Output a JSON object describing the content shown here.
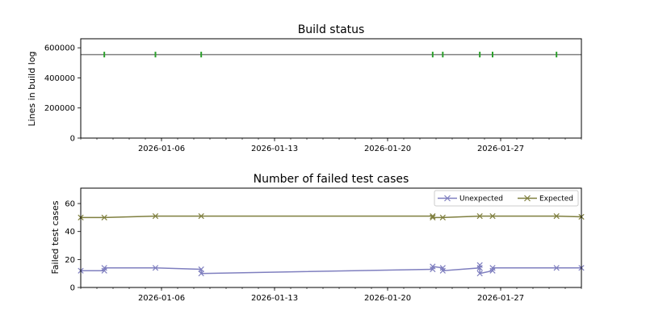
{
  "chart_data": [
    {
      "type": "line",
      "title": "Build status",
      "xlabel": "",
      "ylabel": "Lines in build log",
      "x_axis": {
        "type": "date",
        "range": [
          "2026-01-01T00:00",
          "2026-02-01T00:00"
        ],
        "tick_labels": [
          "2026-01-06",
          "2026-01-13",
          "2026-01-20",
          "2026-01-27"
        ],
        "minor_ticks": "daily"
      },
      "y_axis": {
        "range": [
          0,
          660000
        ],
        "tick_labels": [
          "0",
          "200000",
          "400000",
          "600000"
        ]
      },
      "grid": false,
      "legend": null,
      "baseline": {
        "value": 555000,
        "color": "#808080",
        "x_range": [
          "2026-01-01T00:00",
          "2026-02-01T00:00"
        ]
      },
      "series": [
        {
          "marker": "|",
          "color": "#2ca02c",
          "points": [
            {
              "x": "2026-01-02T11:00",
              "y": 555000
            },
            {
              "x": "2026-01-05T15:00",
              "y": 555000
            },
            {
              "x": "2026-01-08T11:00",
              "y": 555000
            },
            {
              "x": "2026-01-22T19:00",
              "y": 555000
            },
            {
              "x": "2026-01-23T10:00",
              "y": 555000
            },
            {
              "x": "2026-01-25T17:00",
              "y": 555000
            },
            {
              "x": "2026-01-26T12:00",
              "y": 555000
            },
            {
              "x": "2026-01-30T11:00",
              "y": 555000
            }
          ]
        }
      ]
    },
    {
      "type": "line",
      "title": "Number of failed test cases",
      "xlabel": "",
      "ylabel": "Failed test cases",
      "x_axis": {
        "type": "date",
        "range": [
          "2026-01-01T00:00",
          "2026-02-01T00:00"
        ],
        "tick_labels": [
          "2026-01-06",
          "2026-01-13",
          "2026-01-20",
          "2026-01-27"
        ],
        "minor_ticks": "daily"
      },
      "y_axis": {
        "range": [
          0,
          71
        ],
        "tick_labels": [
          "0",
          "20",
          "40",
          "60"
        ]
      },
      "grid": false,
      "legend": "top-right",
      "series": [
        {
          "name": "Unexpected",
          "marker": "x",
          "color": "#7f7fbf",
          "points": [
            {
              "x": "2026-01-01T00:00",
              "y": 12
            },
            {
              "x": "2026-01-02T11:00",
              "y": 12
            },
            {
              "x": "2026-01-02T11:00",
              "y": 14
            },
            {
              "x": "2026-01-05T15:00",
              "y": 14
            },
            {
              "x": "2026-01-08T11:00",
              "y": 13
            },
            {
              "x": "2026-01-08T11:00",
              "y": 10
            },
            {
              "x": "2026-01-22T19:00",
              "y": 13
            },
            {
              "x": "2026-01-22T19:00",
              "y": 15
            },
            {
              "x": "2026-01-23T10:00",
              "y": 14
            },
            {
              "x": "2026-01-23T10:00",
              "y": 12
            },
            {
              "x": "2026-01-25T17:00",
              "y": 14
            },
            {
              "x": "2026-01-25T17:00",
              "y": 16
            },
            {
              "x": "2026-01-25T17:00",
              "y": 10
            },
            {
              "x": "2026-01-26T12:00",
              "y": 12
            },
            {
              "x": "2026-01-26T12:00",
              "y": 14
            },
            {
              "x": "2026-01-30T11:00",
              "y": 14
            },
            {
              "x": "2026-02-01T00:00",
              "y": 14
            }
          ]
        },
        {
          "name": "Expected",
          "marker": "x",
          "color": "#7f7f3f",
          "points": [
            {
              "x": "2026-01-01T00:00",
              "y": 50
            },
            {
              "x": "2026-01-02T11:00",
              "y": 50
            },
            {
              "x": "2026-01-05T15:00",
              "y": 51
            },
            {
              "x": "2026-01-08T11:00",
              "y": 51
            },
            {
              "x": "2026-01-22T19:00",
              "y": 51
            },
            {
              "x": "2026-01-22T19:00",
              "y": 50
            },
            {
              "x": "2026-01-23T10:00",
              "y": 50
            },
            {
              "x": "2026-01-25T17:00",
              "y": 51
            },
            {
              "x": "2026-01-26T12:00",
              "y": 51
            },
            {
              "x": "2026-01-30T11:00",
              "y": 51
            },
            {
              "x": "2026-02-01T00:00",
              "y": 50.5
            }
          ]
        }
      ]
    }
  ]
}
